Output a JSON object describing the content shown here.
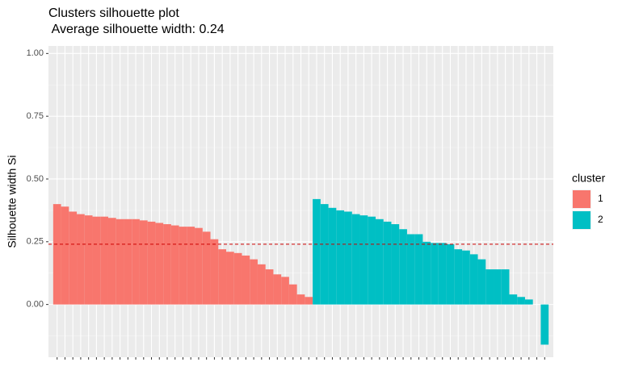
{
  "chart_data": {
    "type": "bar",
    "title": "Clusters silhouette plot",
    "subtitle": " Average silhouette width: 0.24",
    "y_label": "Silhouette width Si",
    "legend_title": "cluster",
    "series": [
      {
        "name": "1",
        "color": "#f8766d",
        "values": [
          0.4,
          0.39,
          0.37,
          0.36,
          0.355,
          0.35,
          0.35,
          0.345,
          0.34,
          0.34,
          0.34,
          0.335,
          0.33,
          0.325,
          0.32,
          0.315,
          0.31,
          0.31,
          0.305,
          0.29,
          0.26,
          0.22,
          0.21,
          0.205,
          0.195,
          0.18,
          0.16,
          0.14,
          0.12,
          0.11,
          0.08,
          0.04,
          0.03
        ]
      },
      {
        "name": "2",
        "color": "#00bfc4",
        "values": [
          0.42,
          0.4,
          0.385,
          0.375,
          0.37,
          0.36,
          0.355,
          0.35,
          0.34,
          0.33,
          0.32,
          0.3,
          0.28,
          0.28,
          0.25,
          0.245,
          0.245,
          0.24,
          0.22,
          0.215,
          0.2,
          0.18,
          0.14,
          0.14,
          0.14,
          0.04,
          0.03,
          0.02,
          0.0,
          -0.16
        ]
      }
    ],
    "hline": 0.24,
    "hline_color": "#cc0000",
    "ylim": [
      -0.21,
      1.03
    ],
    "yticks": [
      {
        "value": 0,
        "label": "0.00"
      },
      {
        "value": 0.25,
        "label": "0.25"
      },
      {
        "value": 0.5,
        "label": "0.50"
      },
      {
        "value": 0.75,
        "label": "0.75"
      },
      {
        "value": 1,
        "label": "1.00"
      }
    ],
    "grid": true
  }
}
